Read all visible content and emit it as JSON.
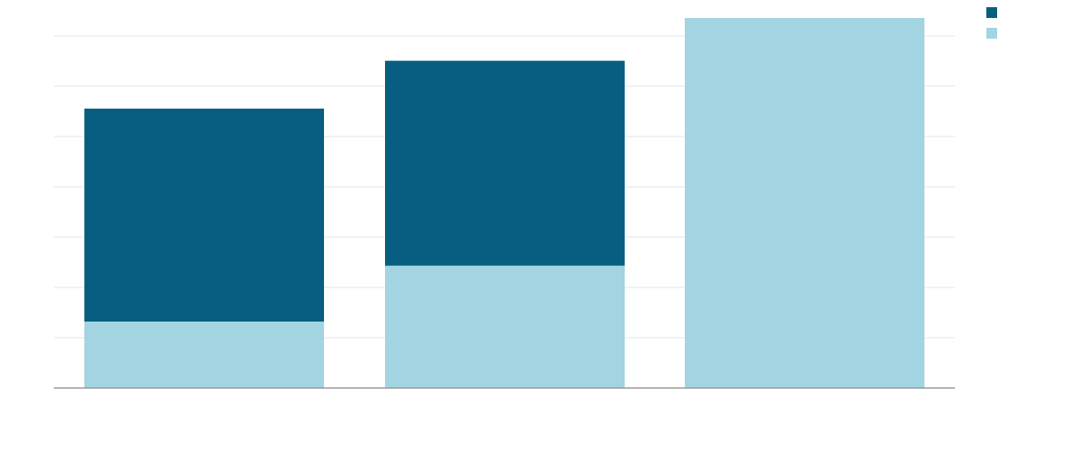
{
  "chart_data": {
    "type": "bar",
    "stacked": true,
    "title": "",
    "xlabel": "",
    "ylabel": "",
    "categories": [
      "",
      "",
      ""
    ],
    "ylim": [
      0,
      7.35
    ],
    "grid": true,
    "legend": "top-right",
    "series": [
      {
        "color": "#a2d4e1",
        "values": [
          1.32,
          2.43,
          7.35
        ]
      },
      {
        "color": "#065f80",
        "values": [
          4.23,
          4.07,
          0
        ]
      }
    ]
  }
}
